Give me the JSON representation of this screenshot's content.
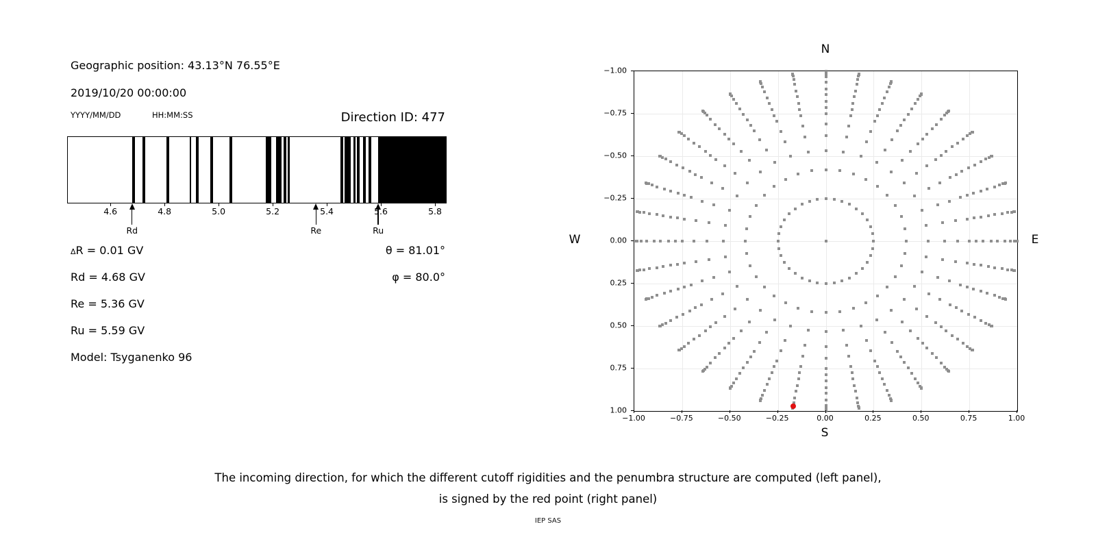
{
  "figure": {
    "caption_line1": "The incoming direction, for which the different cutoff rigidities and the penumbra structure are computed (left panel),",
    "caption_line2": "is signed by the red point (right panel)",
    "credit": "IEP SAS"
  },
  "left_panel": {
    "geographic_position": "Geographic position: 43.13°N 76.55°E",
    "datetime": "2019/10/20 00:00:00",
    "date_format": "YYYY/MM/DD",
    "time_format": "HH:MM:SS",
    "direction_id": "Direction ID: 477",
    "delta_symbol": "Δ",
    "delta_rest": "R = 0.01 GV",
    "values": [
      "Rd = 4.68 GV",
      "Re = 5.36 GV",
      "Ru = 5.59 GV",
      "Model: Tsyganenko 96"
    ],
    "theta": "θ = 81.01°",
    "phi": "φ = 80.0°"
  },
  "chart_data": [
    {
      "type": "bar",
      "name": "penumbra-barcode",
      "description": "Penumbra structure: black bands = forbidden rigidity ranges (GV)",
      "x_unit": "GV",
      "xlim": [
        4.44,
        5.843
      ],
      "x_ticks": [
        4.6,
        4.8,
        5.0,
        5.2,
        5.4,
        5.6,
        5.8
      ],
      "x_tick_labels": [
        "4.6",
        "4.8",
        "5.0",
        "5.2",
        "5.4",
        "5.6",
        "5.8"
      ],
      "bar_color": "#000000",
      "forbidden_bands_gv": [
        [
          4.68,
          4.69
        ],
        [
          4.718,
          4.728
        ],
        [
          4.808,
          4.819
        ],
        [
          4.893,
          4.899
        ],
        [
          4.917,
          4.927
        ],
        [
          4.969,
          4.979
        ],
        [
          5.041,
          5.051
        ],
        [
          5.175,
          5.196
        ],
        [
          5.213,
          5.233
        ],
        [
          5.241,
          5.25
        ],
        [
          5.256,
          5.264
        ],
        [
          5.452,
          5.462
        ],
        [
          5.467,
          5.488
        ],
        [
          5.498,
          5.507
        ],
        [
          5.513,
          5.522
        ],
        [
          5.534,
          5.544
        ],
        [
          5.555,
          5.565
        ],
        [
          5.589,
          5.843
        ]
      ],
      "arrows": [
        {
          "label": "Rd",
          "value": 4.68
        },
        {
          "label": "Re",
          "value": 5.36
        },
        {
          "label": "Ru",
          "value": 5.59
        }
      ]
    },
    {
      "type": "scatter",
      "name": "direction-grid",
      "description": "Grid of incoming directions projected on horizontal plane; radius = sin(zenith), azimuth every 10°",
      "xlim": [
        -1,
        1
      ],
      "ylim": [
        -1,
        1
      ],
      "tick_values": [
        -1,
        -0.75,
        -0.5,
        -0.25,
        0,
        0.25,
        0.5,
        0.75,
        1
      ],
      "x_tick_labels": [
        "−1.00",
        "−0.75",
        "−0.50",
        "−0.25",
        "0.00",
        "0.25",
        "0.50",
        "0.75",
        "1.00"
      ],
      "y_tick_labels": [
        "1.00",
        "0.75",
        "0.50",
        "0.25",
        "0.00",
        "−0.25",
        "−0.50",
        "−0.75",
        "−1.00"
      ],
      "compass": {
        "top": "N",
        "bottom": "S",
        "left": "W",
        "right": "E"
      },
      "grid": true,
      "grid_color": "#ebebeb",
      "dot_color": "#8f8f8f",
      "azimuths_deg": {
        "start": 0,
        "step": 10,
        "count": 36
      },
      "zenith_radii": [
        0.25,
        0.42,
        0.534,
        0.621,
        0.688,
        0.749,
        0.786,
        0.822,
        0.863,
        0.897,
        0.937,
        0.966,
        0.985,
        0.996,
        1.0
      ],
      "center_dot": {
        "x": 0,
        "y": 0
      },
      "selected_direction": {
        "x": -0.171,
        "y": -0.973,
        "zenith_deg": 81.01,
        "azimuth_deg": 80.0,
        "color": "#e21212"
      }
    }
  ]
}
